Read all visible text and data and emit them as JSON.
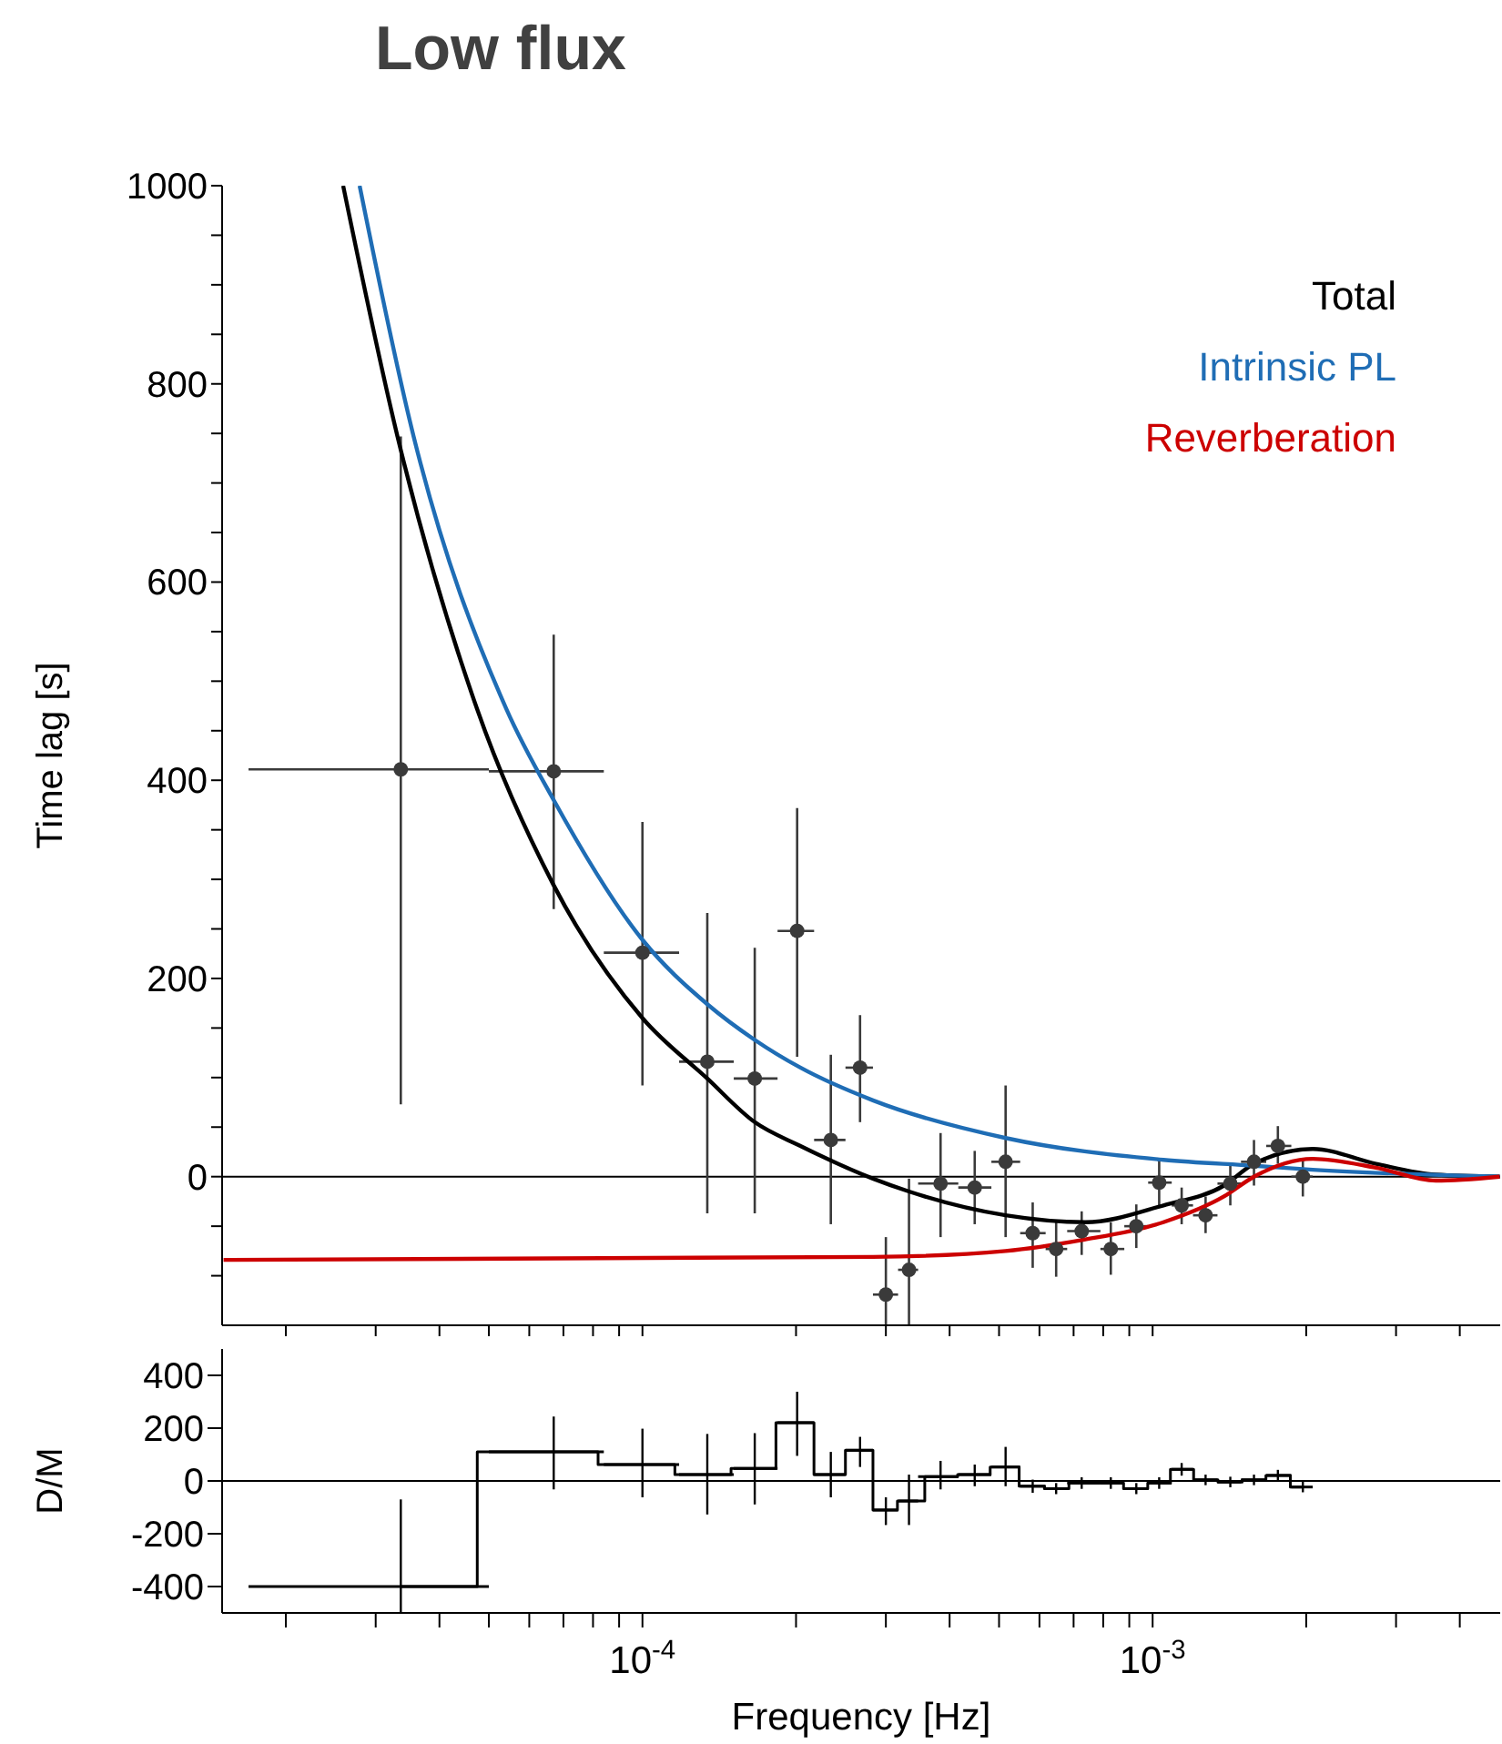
{
  "chart_data": [
    {
      "type": "scatter",
      "title": "Low flux",
      "ylabel": "Time lag [s]",
      "log": "x",
      "legend": "top right",
      "tick_labels": "y",
      "xlim": [
        1.5e-05,
        0.0048
      ],
      "xticks": [
        {
          "value": 2e-05,
          "label": null
        },
        {
          "value": 3e-05,
          "label": null
        },
        {
          "value": 4e-05,
          "label": null
        },
        {
          "value": 5e-05,
          "label": null
        },
        {
          "value": 6e-05,
          "label": null
        },
        {
          "value": 7e-05,
          "label": null
        },
        {
          "value": 8e-05,
          "label": null
        },
        {
          "value": 9e-05,
          "label": null
        },
        {
          "value": 0.0001,
          "label": null
        },
        {
          "value": 0.0002,
          "label": null
        },
        {
          "value": 0.0003,
          "label": null
        },
        {
          "value": 0.0004,
          "label": null
        },
        {
          "value": 0.0005,
          "label": null
        },
        {
          "value": 0.0006,
          "label": null
        },
        {
          "value": 0.0007,
          "label": null
        },
        {
          "value": 0.0008,
          "label": null
        },
        {
          "value": 0.0009,
          "label": null
        },
        {
          "value": 0.001,
          "label": null
        },
        {
          "value": 0.002,
          "label": null
        },
        {
          "value": 0.003,
          "label": null
        },
        {
          "value": 0.004,
          "label": null
        }
      ],
      "ylim": [
        -150,
        1000
      ],
      "yticks": [
        {
          "value": -100,
          "label": null
        },
        {
          "value": -50,
          "label": null
        },
        0,
        {
          "value": 50,
          "label": null
        },
        {
          "value": 100,
          "label": null
        },
        {
          "value": 150,
          "label": null
        },
        200,
        {
          "value": 250,
          "label": null
        },
        {
          "value": 300,
          "label": null
        },
        {
          "value": 350,
          "label": null
        },
        400,
        {
          "value": 450,
          "label": null
        },
        {
          "value": 500,
          "label": null
        },
        {
          "value": 550,
          "label": null
        },
        600,
        {
          "value": 650,
          "label": null
        },
        {
          "value": 700,
          "label": null
        },
        {
          "value": 750,
          "label": null
        },
        800,
        {
          "value": 850,
          "label": null
        },
        {
          "value": 900,
          "label": null
        },
        {
          "value": 950,
          "label": null
        },
        1000
      ],
      "ref_lines": [
        {
          "axis": "y",
          "value": 0,
          "color": "#000000"
        }
      ],
      "series": [
        {
          "marker": "circle",
          "color": "#3a3a3a",
          "x": [
            3.36e-05,
            6.7e-05,
            0.0001,
            0.000134,
            0.000166,
            0.000201,
            0.000234,
            0.000267,
            0.0003,
            0.000333,
            0.000384,
            0.000448,
            0.000515,
            0.000582,
            0.000647,
            0.000726,
            0.000828,
            0.000929,
            0.00103,
            0.00114,
            0.00127,
            0.00142,
            0.00158,
            0.00176,
            0.00197
          ],
          "values": [
            411,
            409,
            226,
            116,
            99,
            248,
            37,
            110,
            -119,
            -94,
            -7,
            -11,
            15,
            -57,
            -73,
            -55,
            -73,
            -50,
            -6,
            -29,
            -39,
            -7,
            15,
            31,
            0
          ],
          "errors": [
            [
              73,
              747
            ],
            [
              270,
              547
            ],
            [
              92,
              358
            ],
            [
              -37,
              266
            ],
            [
              -37,
              231
            ],
            [
              121,
              372
            ],
            [
              -48,
              123
            ],
            [
              55,
              163
            ],
            [
              -150,
              -61
            ],
            [
              -150,
              -2
            ],
            [
              -61,
              44
            ],
            [
              -48,
              26
            ],
            [
              -61,
              92
            ],
            [
              -92,
              -26
            ],
            [
              -101,
              -46
            ],
            [
              -79,
              -35
            ],
            [
              -99,
              -46
            ],
            [
              -72,
              -28
            ],
            [
              -29,
              17
            ],
            [
              -48,
              -11
            ],
            [
              -57,
              -20
            ],
            [
              -29,
              13
            ],
            [
              -9,
              37
            ],
            [
              13,
              51
            ],
            [
              -20,
              17
            ]
          ],
          "xerrors": [
            [
              1.69e-05,
              5e-05
            ],
            [
              5e-05,
              8.4e-05
            ],
            [
              8.4e-05,
              0.000118
            ],
            [
              0.000118,
              0.000151
            ],
            [
              0.000151,
              0.000184
            ],
            [
              0.000184,
              0.000217
            ],
            [
              0.000217,
              0.00025
            ],
            [
              0.00025,
              0.000283
            ],
            [
              0.000283,
              0.000317
            ],
            [
              0.000317,
              0.000347
            ],
            [
              0.000347,
              0.000416
            ],
            [
              0.000416,
              0.000483
            ],
            [
              0.000483,
              0.00055
            ],
            [
              0.00055,
              0.000617
            ],
            [
              0.000617,
              0.00068
            ],
            [
              0.00068,
              0.00079
            ],
            [
              0.00079,
              0.00088
            ],
            [
              0.00088,
              0.00098
            ],
            [
              0.00098,
              0.00109
            ],
            [
              0.00109,
              0.0012
            ],
            [
              0.0012,
              0.00134
            ],
            [
              0.00134,
              0.00149
            ],
            [
              0.00149,
              0.00167
            ],
            [
              0.00167,
              0.00187
            ],
            [
              0.00187,
              0.00206
            ]
          ]
        },
        {
          "type": "line",
          "name": "Total",
          "color": "#000000",
          "x": [
            2.59e-05,
            3.31e-05,
            4.74e-05,
            6.7e-05,
            0.0001,
            0.000134,
            0.000166,
            0.000204,
            0.000283,
            0.000333,
            0.000515,
            0.000738,
            0.00105,
            0.00138,
            0.00158,
            0.00206,
            0.00274,
            0.00359,
            0.00479
          ],
          "values": [
            1000,
            747,
            472,
            294,
            160,
            99,
            55,
            31,
            -2,
            -15,
            -39,
            -46,
            -29,
            -9,
            13,
            28,
            13,
            2,
            0
          ]
        },
        {
          "type": "line",
          "name": "Intrinsic PL",
          "color": "#1f6db5",
          "x": [
            2.79e-05,
            3.56e-05,
            5.41e-05,
            6.7e-05,
            0.0001,
            0.000134,
            0.000166,
            0.000204,
            0.000283,
            0.000515,
            0.00105,
            0.00158,
            0.00206,
            0.00479
          ],
          "values": [
            1000,
            747,
            472,
            380,
            239,
            174,
            138,
            110,
            77,
            39,
            17,
            11,
            7,
            0
          ]
        },
        {
          "type": "line",
          "name": "Reverberation",
          "color": "#cc0000",
          "x": [
            1.51e-05,
            0.000283,
            0.000515,
            0.000726,
            0.00105,
            0.00138,
            0.00158,
            0.00206,
            0.00274,
            0.00359,
            0.00479
          ],
          "values": [
            -84,
            -81,
            -75,
            -64,
            -46,
            -20,
            0,
            18,
            9,
            -4,
            0
          ]
        }
      ]
    },
    {
      "type": "step",
      "ylabel": "D/M",
      "xlabel": "Frequency [Hz]",
      "log": "x",
      "xlim": [
        1.5e-05,
        0.0048
      ],
      "xticks": [
        {
          "value": 2e-05,
          "label": null
        },
        {
          "value": 3e-05,
          "label": null
        },
        {
          "value": 4e-05,
          "label": null
        },
        {
          "value": 5e-05,
          "label": null
        },
        {
          "value": 6e-05,
          "label": null
        },
        {
          "value": 7e-05,
          "label": null
        },
        {
          "value": 8e-05,
          "label": null
        },
        {
          "value": 9e-05,
          "label": null
        },
        {
          "value": 0.0001,
          "label": "10$^{-4}$"
        },
        {
          "value": 0.0002,
          "label": null
        },
        {
          "value": 0.0003,
          "label": null
        },
        {
          "value": 0.0004,
          "label": null
        },
        {
          "value": 0.0005,
          "label": null
        },
        {
          "value": 0.0006,
          "label": null
        },
        {
          "value": 0.0007,
          "label": null
        },
        {
          "value": 0.0008,
          "label": null
        },
        {
          "value": 0.0009,
          "label": null
        },
        {
          "value": 0.001,
          "label": "10$^{-3}$"
        },
        {
          "value": 0.002,
          "label": null
        },
        {
          "value": 0.003,
          "label": null
        },
        {
          "value": 0.004,
          "label": null
        }
      ],
      "ylim": [
        -500,
        500
      ],
      "yticks": [
        -400,
        -200,
        0,
        200,
        400
      ],
      "ref_lines": [
        {
          "axis": "y",
          "value": 0,
          "color": "#000000"
        }
      ],
      "series": [
        {
          "color": "#000000",
          "x": [
            3.36e-05,
            6.7e-05,
            0.0001,
            0.000134,
            0.000166,
            0.000201,
            0.000234,
            0.000267,
            0.0003,
            0.000333,
            0.000384,
            0.000448,
            0.000515,
            0.000582,
            0.000647,
            0.000726,
            0.000828,
            0.000929,
            0.00103,
            0.00114,
            0.00127,
            0.00142,
            0.00158,
            0.00176,
            0.00197
          ],
          "values": [
            -400,
            110,
            62,
            24,
            47,
            221,
            24,
            116,
            -110,
            -76,
            16,
            24,
            53,
            -20,
            -29,
            -8,
            -8,
            -29,
            -8,
            44,
            4,
            -4,
            4,
            21,
            -23
          ],
          "errors": [
            [
              -500,
              -70
            ],
            [
              -32,
              244
            ],
            [
              -62,
              198
            ],
            [
              -127,
              178
            ],
            [
              -89,
              181
            ],
            [
              95,
              338
            ],
            [
              -62,
              110
            ],
            [
              53,
              167
            ],
            [
              -167,
              -62
            ],
            [
              -167,
              24
            ],
            [
              -32,
              76
            ],
            [
              -20,
              62
            ],
            [
              -20,
              129
            ],
            [
              -45,
              5
            ],
            [
              -50,
              -8
            ],
            [
              -30,
              14
            ],
            [
              -30,
              14
            ],
            [
              -50,
              -8
            ],
            [
              -30,
              14
            ],
            [
              20,
              68
            ],
            [
              -16,
              24
            ],
            [
              -24,
              16
            ],
            [
              -16,
              24
            ],
            [
              0,
              42
            ],
            [
              -43,
              -3
            ]
          ],
          "xerrors": [
            [
              1.69e-05,
              5e-05
            ],
            [
              5e-05,
              8.4e-05
            ],
            [
              8.4e-05,
              0.000118
            ],
            [
              0.000118,
              0.000151
            ],
            [
              0.000151,
              0.000184
            ],
            [
              0.000184,
              0.000217
            ],
            [
              0.000217,
              0.00025
            ],
            [
              0.00025,
              0.000283
            ],
            [
              0.000283,
              0.000317
            ],
            [
              0.000317,
              0.000347
            ],
            [
              0.000347,
              0.000416
            ],
            [
              0.000416,
              0.000483
            ],
            [
              0.000483,
              0.00055
            ],
            [
              0.00055,
              0.000617
            ],
            [
              0.000617,
              0.00068
            ],
            [
              0.00068,
              0.00079
            ],
            [
              0.00079,
              0.00088
            ],
            [
              0.00088,
              0.00098
            ],
            [
              0.00098,
              0.00109
            ],
            [
              0.00109,
              0.0012
            ],
            [
              0.0012,
              0.00134
            ],
            [
              0.00134,
              0.00149
            ],
            [
              0.00149,
              0.00167
            ],
            [
              0.00167,
              0.00187
            ],
            [
              0.00187,
              0.00206
            ]
          ]
        }
      ]
    }
  ]
}
